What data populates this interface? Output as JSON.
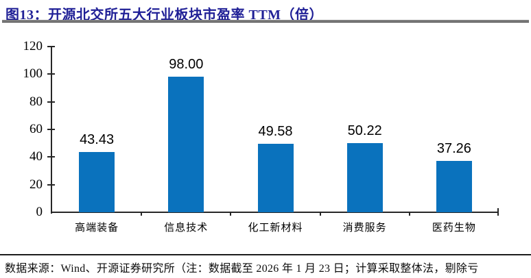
{
  "title": "图13：开源北交所五大行业板块市盈率 TTM（倍）",
  "accent_colors": {
    "title_navy": "#1f1f96",
    "bar_blue": "#0a72bd",
    "rule_gray": "#7f7f7f",
    "axis_black": "#262626"
  },
  "chart_data": {
    "type": "bar",
    "title": "开源北交所五大行业板块市盈率 TTM（倍）",
    "categories": [
      "高端装备",
      "信息技术",
      "化工新材料",
      "消费服务",
      "医药生物"
    ],
    "values": [
      43.43,
      98.0,
      49.58,
      50.22,
      37.26
    ],
    "value_labels": [
      "43.43",
      "98.00",
      "49.58",
      "50.22",
      "37.26"
    ],
    "xlabel": "",
    "ylabel": "",
    "ylim": [
      0,
      120
    ],
    "yticks": [
      0,
      20,
      40,
      60,
      80,
      100,
      120
    ],
    "grid": false,
    "legend_position": "none",
    "bar_color": "#0a72bd"
  },
  "footer": {
    "source_text": "数据来源：Wind、开源证券研究所（注：数据截至 2026 年 1 月 23 日；计算采取整体法，剔除亏"
  }
}
